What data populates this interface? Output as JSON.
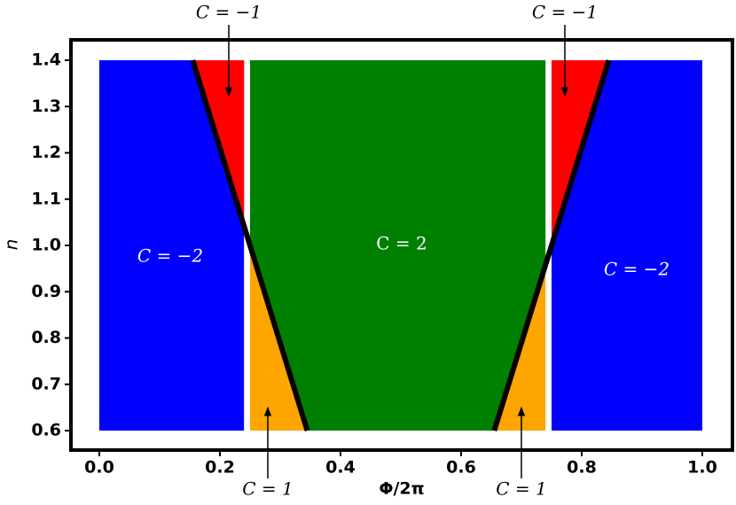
{
  "chart_data": {
    "type": "phase-diagram",
    "x_label": "Φ/2π",
    "y_label": "n",
    "xlim": [
      -0.047,
      1.05
    ],
    "ylim": [
      0.558,
      1.444
    ],
    "xticks": [
      {
        "value": 0,
        "label": "0.0"
      },
      0.2,
      0.4,
      0.6,
      0.8,
      {
        "value": 1,
        "label": "1.0"
      }
    ],
    "yticks": [
      0.6,
      0.7,
      0.8,
      0.9,
      {
        "value": 1,
        "label": "1.0"
      },
      1.1,
      1.2,
      1.3,
      1.4
    ],
    "regions": [
      {
        "name": "C = −2",
        "color": "#0000ff",
        "x": [
          0,
          0.24,
          0.24,
          0
        ],
        "y": [
          0.6,
          0.6,
          1.4,
          1.4
        ]
      },
      {
        "name": "C = −2",
        "color": "#0000ff",
        "x": [
          0.75,
          1,
          1,
          0.75
        ],
        "y": [
          0.6,
          0.6,
          1.4,
          1.4
        ]
      },
      {
        "name": "C = −1",
        "color": "#ff0000",
        "x": [
          0.155,
          0.24,
          0.24
        ],
        "y": [
          1.4,
          1.4,
          1.042
        ]
      },
      {
        "name": "C = −1",
        "color": "#ff0000",
        "x": [
          0.75,
          0.845,
          0.75
        ],
        "y": [
          1.0,
          1.4,
          1.4
        ]
      },
      {
        "name": "C = 1",
        "color": "#ffa500",
        "x": [
          0.25,
          0.345,
          0.25
        ],
        "y": [
          1.0,
          0.6,
          0.6
        ]
      },
      {
        "name": "C = 1",
        "color": "#ffa500",
        "x": [
          0.655,
          0.74,
          0.74
        ],
        "y": [
          0.6,
          0.6,
          0.958
        ]
      },
      {
        "name": "C = 2",
        "color": "#008000",
        "x": [
          0.25,
          0.74,
          0.74,
          0.655,
          0.345,
          0.25
        ],
        "y": [
          1.4,
          1.4,
          0.958,
          0.6,
          0.6,
          1.0
        ]
      }
    ],
    "boundaries": [
      {
        "color": "#000000",
        "x": [
          0.155,
          0.345
        ],
        "y": [
          1.4,
          0.6
        ]
      },
      {
        "color": "#000000",
        "x": [
          0.655,
          0.845
        ],
        "y": [
          0.6,
          1.4
        ]
      }
    ]
  }
}
